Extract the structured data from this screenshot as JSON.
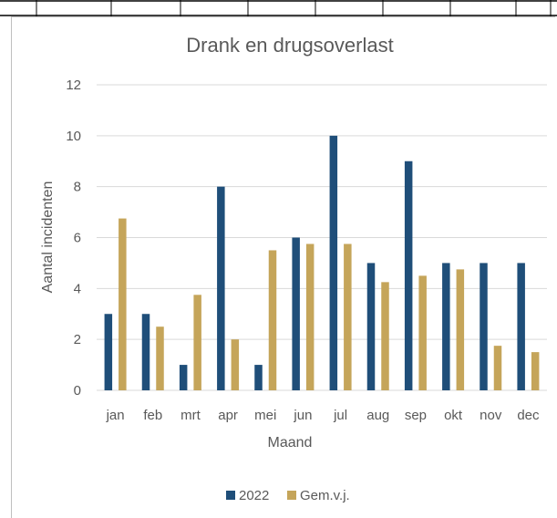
{
  "chart_data": {
    "type": "bar",
    "title": "Drank en drugsoverlast",
    "xlabel": "Maand",
    "ylabel": "Aantal incidenten",
    "categories": [
      "jan",
      "feb",
      "mrt",
      "apr",
      "mei",
      "jun",
      "jul",
      "aug",
      "sep",
      "okt",
      "nov",
      "dec"
    ],
    "series": [
      {
        "name": "2022",
        "color": "#1f4e79",
        "values": [
          3,
          3,
          1,
          8,
          1,
          6,
          10,
          5,
          9,
          5,
          5,
          5
        ]
      },
      {
        "name": "Gem.v.j.",
        "color": "#c5a55a",
        "values": [
          6.75,
          2.5,
          3.75,
          2,
          5.5,
          5.75,
          5.75,
          4.25,
          4.5,
          4.75,
          1.75,
          1.5
        ]
      }
    ],
    "ylim": [
      0,
      12
    ],
    "yticks": [
      0,
      2,
      4,
      6,
      8,
      10,
      12
    ],
    "grid": true,
    "legend_position": "bottom"
  }
}
